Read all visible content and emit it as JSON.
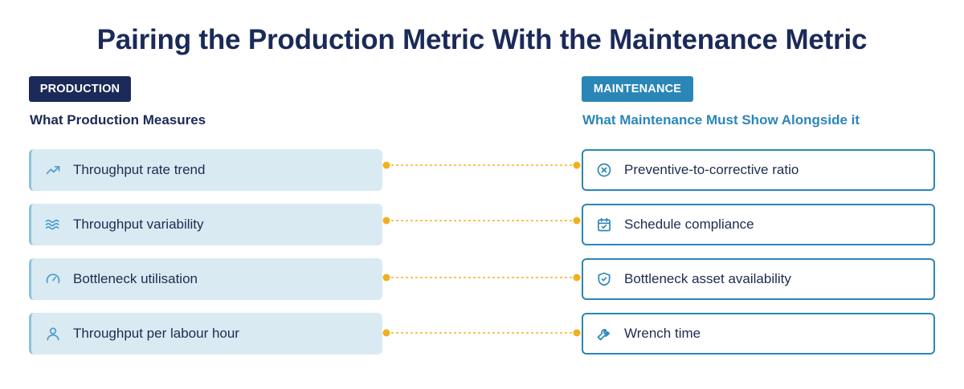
{
  "title": "Pairing the Production Metric With the Maintenance Metric",
  "production": {
    "badge": "PRODUCTION",
    "subtitle": "What Production Measures",
    "items": [
      {
        "label": "Throughput rate trend",
        "icon": "trending-up-icon"
      },
      {
        "label": "Throughput variability",
        "icon": "waves-icon"
      },
      {
        "label": "Bottleneck utilisation",
        "icon": "gauge-icon"
      },
      {
        "label": "Throughput per labour hour",
        "icon": "user-icon"
      }
    ]
  },
  "maintenance": {
    "badge": "MAINTENANCE",
    "subtitle": "What Maintenance Must Show Alongside it",
    "items": [
      {
        "label": "Preventive-to-corrective ratio",
        "icon": "circle-x-icon"
      },
      {
        "label": "Schedule compliance",
        "icon": "calendar-check-icon"
      },
      {
        "label": "Bottleneck asset availability",
        "icon": "shield-check-icon"
      },
      {
        "label": "Wrench time",
        "icon": "wrench-icon"
      }
    ]
  },
  "colors": {
    "navy": "#1b2a58",
    "blue": "#2b86b8",
    "left_fill": "#d9eaf3",
    "connector": "#f2b01e"
  }
}
